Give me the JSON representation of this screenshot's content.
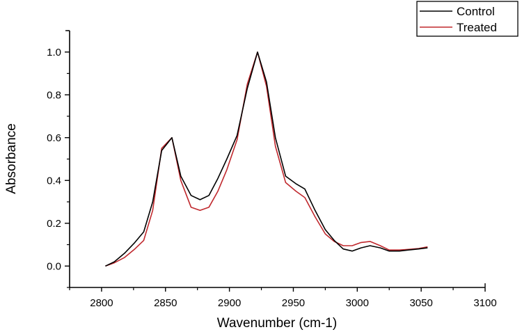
{
  "chart_data": {
    "type": "line",
    "title": "",
    "xlabel": "Wavenumber (cm-1)",
    "ylabel": "Absorbance",
    "xlim": [
      2775,
      3100
    ],
    "ylim": [
      -0.1,
      1.1
    ],
    "xticks": [
      2800,
      2850,
      2900,
      2950,
      3000,
      3050,
      3100
    ],
    "xtick_labels": [
      "2800",
      "2850",
      "2900",
      "2950",
      "3000",
      "3050",
      "3100"
    ],
    "yticks": [
      0.0,
      0.2,
      0.4,
      0.6,
      0.8,
      1.0
    ],
    "ytick_labels": [
      "0.0",
      "0.2",
      "0.4",
      "0.6",
      "0.8",
      "1.0"
    ],
    "grid": false,
    "legend_position": "top-right",
    "series": [
      {
        "name": "Control",
        "color": "#000000",
        "x": [
          2803,
          2810,
          2818,
          2826,
          2833,
          2840,
          2847,
          2855,
          2862,
          2870,
          2877,
          2884,
          2891,
          2898,
          2906,
          2914,
          2922,
          2929,
          2936,
          2944,
          2952,
          2959,
          2967,
          2975,
          2982,
          2989,
          2996,
          3003,
          3010,
          3018,
          3025,
          3033,
          3040,
          3048,
          3055
        ],
        "y": [
          0.0,
          0.02,
          0.06,
          0.11,
          0.16,
          0.3,
          0.54,
          0.6,
          0.42,
          0.33,
          0.31,
          0.33,
          0.41,
          0.5,
          0.61,
          0.83,
          1.0,
          0.86,
          0.6,
          0.42,
          0.385,
          0.36,
          0.26,
          0.17,
          0.12,
          0.08,
          0.07,
          0.085,
          0.095,
          0.085,
          0.07,
          0.07,
          0.075,
          0.08,
          0.085
        ]
      },
      {
        "name": "Treated",
        "color": "#c0282d",
        "x": [
          2803,
          2810,
          2818,
          2826,
          2833,
          2840,
          2847,
          2855,
          2862,
          2870,
          2877,
          2884,
          2891,
          2898,
          2906,
          2914,
          2922,
          2929,
          2936,
          2944,
          2952,
          2959,
          2967,
          2975,
          2982,
          2989,
          2996,
          3003,
          3010,
          3018,
          3025,
          3033,
          3040,
          3048,
          3055
        ],
        "y": [
          0.0,
          0.015,
          0.04,
          0.08,
          0.12,
          0.26,
          0.55,
          0.6,
          0.4,
          0.275,
          0.26,
          0.275,
          0.35,
          0.45,
          0.59,
          0.85,
          1.0,
          0.84,
          0.56,
          0.39,
          0.35,
          0.32,
          0.23,
          0.15,
          0.115,
          0.095,
          0.095,
          0.11,
          0.115,
          0.095,
          0.075,
          0.075,
          0.078,
          0.082,
          0.09
        ]
      }
    ]
  },
  "legend": {
    "items": [
      {
        "label": "Control",
        "color": "#000000"
      },
      {
        "label": "Treated",
        "color": "#c0282d"
      }
    ]
  }
}
